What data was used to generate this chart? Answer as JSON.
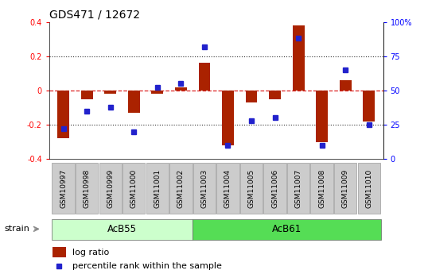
{
  "title": "GDS471 / 12672",
  "samples": [
    "GSM10997",
    "GSM10998",
    "GSM10999",
    "GSM11000",
    "GSM11001",
    "GSM11002",
    "GSM11003",
    "GSM11004",
    "GSM11005",
    "GSM11006",
    "GSM11007",
    "GSM11008",
    "GSM11009",
    "GSM11010"
  ],
  "log_ratio": [
    -0.28,
    -0.05,
    -0.02,
    -0.13,
    -0.02,
    0.02,
    0.16,
    -0.32,
    -0.07,
    -0.05,
    0.38,
    -0.3,
    0.06,
    -0.18
  ],
  "percentile": [
    22,
    35,
    38,
    20,
    52,
    55,
    82,
    10,
    28,
    30,
    88,
    10,
    65,
    25
  ],
  "strains": [
    {
      "label": "AcB55",
      "start": 0,
      "end": 5,
      "color": "#ccffcc"
    },
    {
      "label": "AcB61",
      "start": 6,
      "end": 13,
      "color": "#55dd55"
    }
  ],
  "n_acb55": 6,
  "n_acb61": 8,
  "strain_label": "strain",
  "bar_color": "#aa2200",
  "marker_color": "#2222cc",
  "ylim": [
    -0.4,
    0.4
  ],
  "yticks_left": [
    -0.4,
    -0.2,
    0.0,
    0.2,
    0.4
  ],
  "yticks_right": [
    0,
    25,
    50,
    75,
    100
  ],
  "zero_line_color": "#dd2222",
  "dotted_color": "#333333",
  "bg_color": "#ffffff",
  "sample_box_bg": "#cccccc",
  "legend_log_ratio": "log ratio",
  "legend_percentile": "percentile rank within the sample",
  "bar_width": 0.5,
  "marker_size": 5,
  "title_fontsize": 10,
  "tick_fontsize": 7,
  "sample_fontsize": 6.5,
  "legend_fontsize": 8
}
